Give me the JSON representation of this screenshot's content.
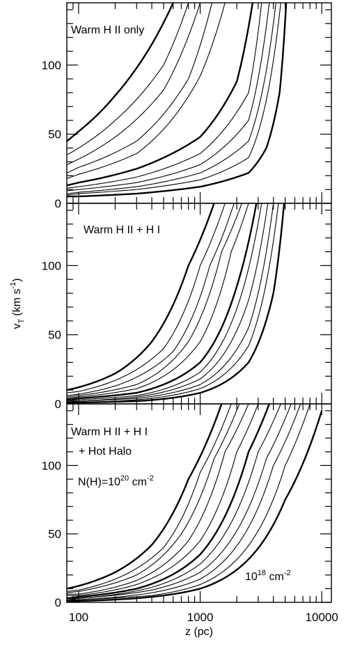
{
  "chart_data": {
    "type": "line",
    "x_scale": "log",
    "xlim": [
      80,
      12000
    ],
    "ylim": [
      0,
      145
    ],
    "xlabel": "z (pc)",
    "ylabel": "v",
    "ylabel_sub": "T",
    "ylabel_unit_open": "(km s",
    "ylabel_unit_exp": "-1",
    "ylabel_unit_close": ")",
    "x_ticks": [
      {
        "value": 100,
        "label": "100"
      },
      {
        "value": 1000,
        "label": "1000"
      },
      {
        "value": 10000,
        "label": "10000"
      }
    ],
    "y_ticks": [
      {
        "value": 0,
        "label": "0"
      },
      {
        "value": 50,
        "label": "50"
      },
      {
        "value": 100,
        "label": "100"
      }
    ],
    "panels": [
      {
        "label_lines": [
          "Warm H II only"
        ],
        "annotations": [],
        "curves": [
          {
            "bold": true,
            "points": [
              [
                80,
                45
              ],
              [
                100,
                52
              ],
              [
                200,
                78
              ],
              [
                400,
                115
              ],
              [
                600,
                145
              ]
            ]
          },
          {
            "bold": false,
            "points": [
              [
                80,
                35
              ],
              [
                100,
                40
              ],
              [
                200,
                60
              ],
              [
                500,
                100
              ],
              [
                800,
                145
              ]
            ]
          },
          {
            "bold": false,
            "points": [
              [
                80,
                28
              ],
              [
                100,
                32
              ],
              [
                200,
                48
              ],
              [
                500,
                82
              ],
              [
                1000,
                145
              ]
            ]
          },
          {
            "bold": false,
            "points": [
              [
                80,
                22
              ],
              [
                100,
                26
              ],
              [
                300,
                45
              ],
              [
                800,
                90
              ],
              [
                1250,
                145
              ]
            ]
          },
          {
            "bold": false,
            "points": [
              [
                80,
                18
              ],
              [
                100,
                21
              ],
              [
                300,
                36
              ],
              [
                1000,
                92
              ],
              [
                1600,
                145
              ]
            ]
          },
          {
            "bold": true,
            "points": [
              [
                80,
                13
              ],
              [
                100,
                15
              ],
              [
                300,
                25
              ],
              [
                1000,
                48
              ],
              [
                2000,
                88
              ],
              [
                2700,
                145
              ]
            ]
          },
          {
            "bold": false,
            "points": [
              [
                80,
                11
              ],
              [
                100,
                12
              ],
              [
                300,
                19
              ],
              [
                1000,
                36
              ],
              [
                2500,
                80
              ],
              [
                3200,
                145
              ]
            ]
          },
          {
            "bold": false,
            "points": [
              [
                80,
                9
              ],
              [
                100,
                10
              ],
              [
                300,
                15
              ],
              [
                1000,
                28
              ],
              [
                2500,
                60
              ],
              [
                3700,
                145
              ]
            ]
          },
          {
            "bold": false,
            "points": [
              [
                80,
                7
              ],
              [
                100,
                8
              ],
              [
                300,
                12
              ],
              [
                1000,
                22
              ],
              [
                2500,
                45
              ],
              [
                4200,
                145
              ]
            ]
          },
          {
            "bold": false,
            "points": [
              [
                80,
                6
              ],
              [
                100,
                7
              ],
              [
                300,
                10
              ],
              [
                1000,
                17
              ],
              [
                2500,
                33
              ],
              [
                4600,
                145
              ]
            ]
          },
          {
            "bold": true,
            "points": [
              [
                80,
                5
              ],
              [
                100,
                5
              ],
              [
                300,
                7
              ],
              [
                1000,
                12
              ],
              [
                2500,
                22
              ],
              [
                3500,
                40
              ],
              [
                4500,
                80
              ],
              [
                5100,
                145
              ]
            ]
          }
        ]
      },
      {
        "label_lines": [
          "Warm H II + H I"
        ],
        "annotations": [],
        "curves": [
          {
            "bold": true,
            "points": [
              [
                80,
                10
              ],
              [
                100,
                12
              ],
              [
                200,
                22
              ],
              [
                400,
                45
              ],
              [
                800,
                100
              ],
              [
                1300,
                145
              ]
            ]
          },
          {
            "bold": false,
            "points": [
              [
                80,
                8
              ],
              [
                100,
                9
              ],
              [
                200,
                17
              ],
              [
                500,
                40
              ],
              [
                1000,
                100
              ],
              [
                1600,
                145
              ]
            ]
          },
          {
            "bold": false,
            "points": [
              [
                80,
                6
              ],
              [
                100,
                7
              ],
              [
                200,
                13
              ],
              [
                600,
                38
              ],
              [
                1200,
                100
              ],
              [
                1900,
                145
              ]
            ]
          },
          {
            "bold": false,
            "points": [
              [
                80,
                5
              ],
              [
                100,
                6
              ],
              [
                300,
                14
              ],
              [
                800,
                45
              ],
              [
                1500,
                110
              ],
              [
                2200,
                145
              ]
            ]
          },
          {
            "bold": false,
            "points": [
              [
                80,
                4
              ],
              [
                100,
                5
              ],
              [
                300,
                11
              ],
              [
                1000,
                45
              ],
              [
                1800,
                110
              ],
              [
                2500,
                145
              ]
            ]
          },
          {
            "bold": true,
            "points": [
              [
                80,
                3
              ],
              [
                100,
                4
              ],
              [
                300,
                8
              ],
              [
                1000,
                30
              ],
              [
                2000,
                85
              ],
              [
                2900,
                145
              ]
            ]
          },
          {
            "bold": false,
            "points": [
              [
                80,
                2
              ],
              [
                100,
                3
              ],
              [
                300,
                6
              ],
              [
                1000,
                23
              ],
              [
                2200,
                80
              ],
              [
                3200,
                145
              ]
            ]
          },
          {
            "bold": false,
            "points": [
              [
                80,
                2
              ],
              [
                100,
                2
              ],
              [
                300,
                5
              ],
              [
                1000,
                18
              ],
              [
                2500,
                75
              ],
              [
                3600,
                145
              ]
            ]
          },
          {
            "bold": false,
            "points": [
              [
                80,
                1
              ],
              [
                100,
                2
              ],
              [
                300,
                4
              ],
              [
                1000,
                14
              ],
              [
                2500,
                55
              ],
              [
                4000,
                145
              ]
            ]
          },
          {
            "bold": false,
            "points": [
              [
                80,
                1
              ],
              [
                100,
                1
              ],
              [
                300,
                3
              ],
              [
                1000,
                11
              ],
              [
                2500,
                42
              ],
              [
                4400,
                145
              ]
            ]
          },
          {
            "bold": true,
            "points": [
              [
                80,
                1
              ],
              [
                100,
                1
              ],
              [
                300,
                2
              ],
              [
                1000,
                8
              ],
              [
                2500,
                30
              ],
              [
                4000,
                80
              ],
              [
                4900,
                145
              ]
            ]
          }
        ]
      },
      {
        "label_lines": [
          "Warm H II + H I",
          "+ Hot Halo"
        ],
        "annotations": [
          {
            "id": "top",
            "base": "N(H)=10",
            "exp": "20",
            "unit": " cm",
            "unit_exp": "-2"
          },
          {
            "id": "bottom",
            "base": "10",
            "exp": "18",
            "unit": " cm",
            "unit_exp": "-2"
          }
        ],
        "curves": [
          {
            "bold": true,
            "points": [
              [
                80,
                10
              ],
              [
                100,
                12
              ],
              [
                200,
                22
              ],
              [
                400,
                42
              ],
              [
                800,
                90
              ],
              [
                1500,
                145
              ]
            ]
          },
          {
            "bold": false,
            "points": [
              [
                80,
                8
              ],
              [
                100,
                9
              ],
              [
                200,
                17
              ],
              [
                500,
                40
              ],
              [
                1000,
                95
              ],
              [
                1800,
                145
              ]
            ]
          },
          {
            "bold": false,
            "points": [
              [
                80,
                7
              ],
              [
                100,
                8
              ],
              [
                300,
                20
              ],
              [
                700,
                50
              ],
              [
                1300,
                105
              ],
              [
                2100,
                145
              ]
            ]
          },
          {
            "bold": false,
            "points": [
              [
                80,
                6
              ],
              [
                100,
                6
              ],
              [
                300,
                16
              ],
              [
                800,
                45
              ],
              [
                1600,
                110
              ],
              [
                2500,
                145
              ]
            ]
          },
          {
            "bold": false,
            "points": [
              [
                80,
                5
              ],
              [
                100,
                5
              ],
              [
                300,
                13
              ],
              [
                1000,
                45
              ],
              [
                2000,
                110
              ],
              [
                3000,
                145
              ]
            ]
          },
          {
            "bold": true,
            "points": [
              [
                80,
                3
              ],
              [
                100,
                4
              ],
              [
                300,
                10
              ],
              [
                1000,
                35
              ],
              [
                2500,
                110
              ],
              [
                3700,
                145
              ]
            ]
          },
          {
            "bold": false,
            "points": [
              [
                80,
                3
              ],
              [
                100,
                3
              ],
              [
                400,
                11
              ],
              [
                1000,
                28
              ],
              [
                3000,
                110
              ],
              [
                4600,
                145
              ]
            ]
          },
          {
            "bold": false,
            "points": [
              [
                80,
                2
              ],
              [
                100,
                3
              ],
              [
                400,
                9
              ],
              [
                1000,
                22
              ],
              [
                3500,
                105
              ],
              [
                5600,
                145
              ]
            ]
          },
          {
            "bold": false,
            "points": [
              [
                80,
                2
              ],
              [
                100,
                2
              ],
              [
                400,
                7
              ],
              [
                1000,
                17
              ],
              [
                4000,
                100
              ],
              [
                6700,
                145
              ]
            ]
          },
          {
            "bold": false,
            "points": [
              [
                80,
                1
              ],
              [
                100,
                2
              ],
              [
                400,
                5
              ],
              [
                1000,
                13
              ],
              [
                5000,
                100
              ],
              [
                8000,
                145
              ]
            ]
          },
          {
            "bold": true,
            "points": [
              [
                80,
                1
              ],
              [
                100,
                1
              ],
              [
                400,
                4
              ],
              [
                1000,
                10
              ],
              [
                5000,
                75
              ],
              [
                10000,
                140
              ]
            ]
          }
        ]
      }
    ]
  }
}
